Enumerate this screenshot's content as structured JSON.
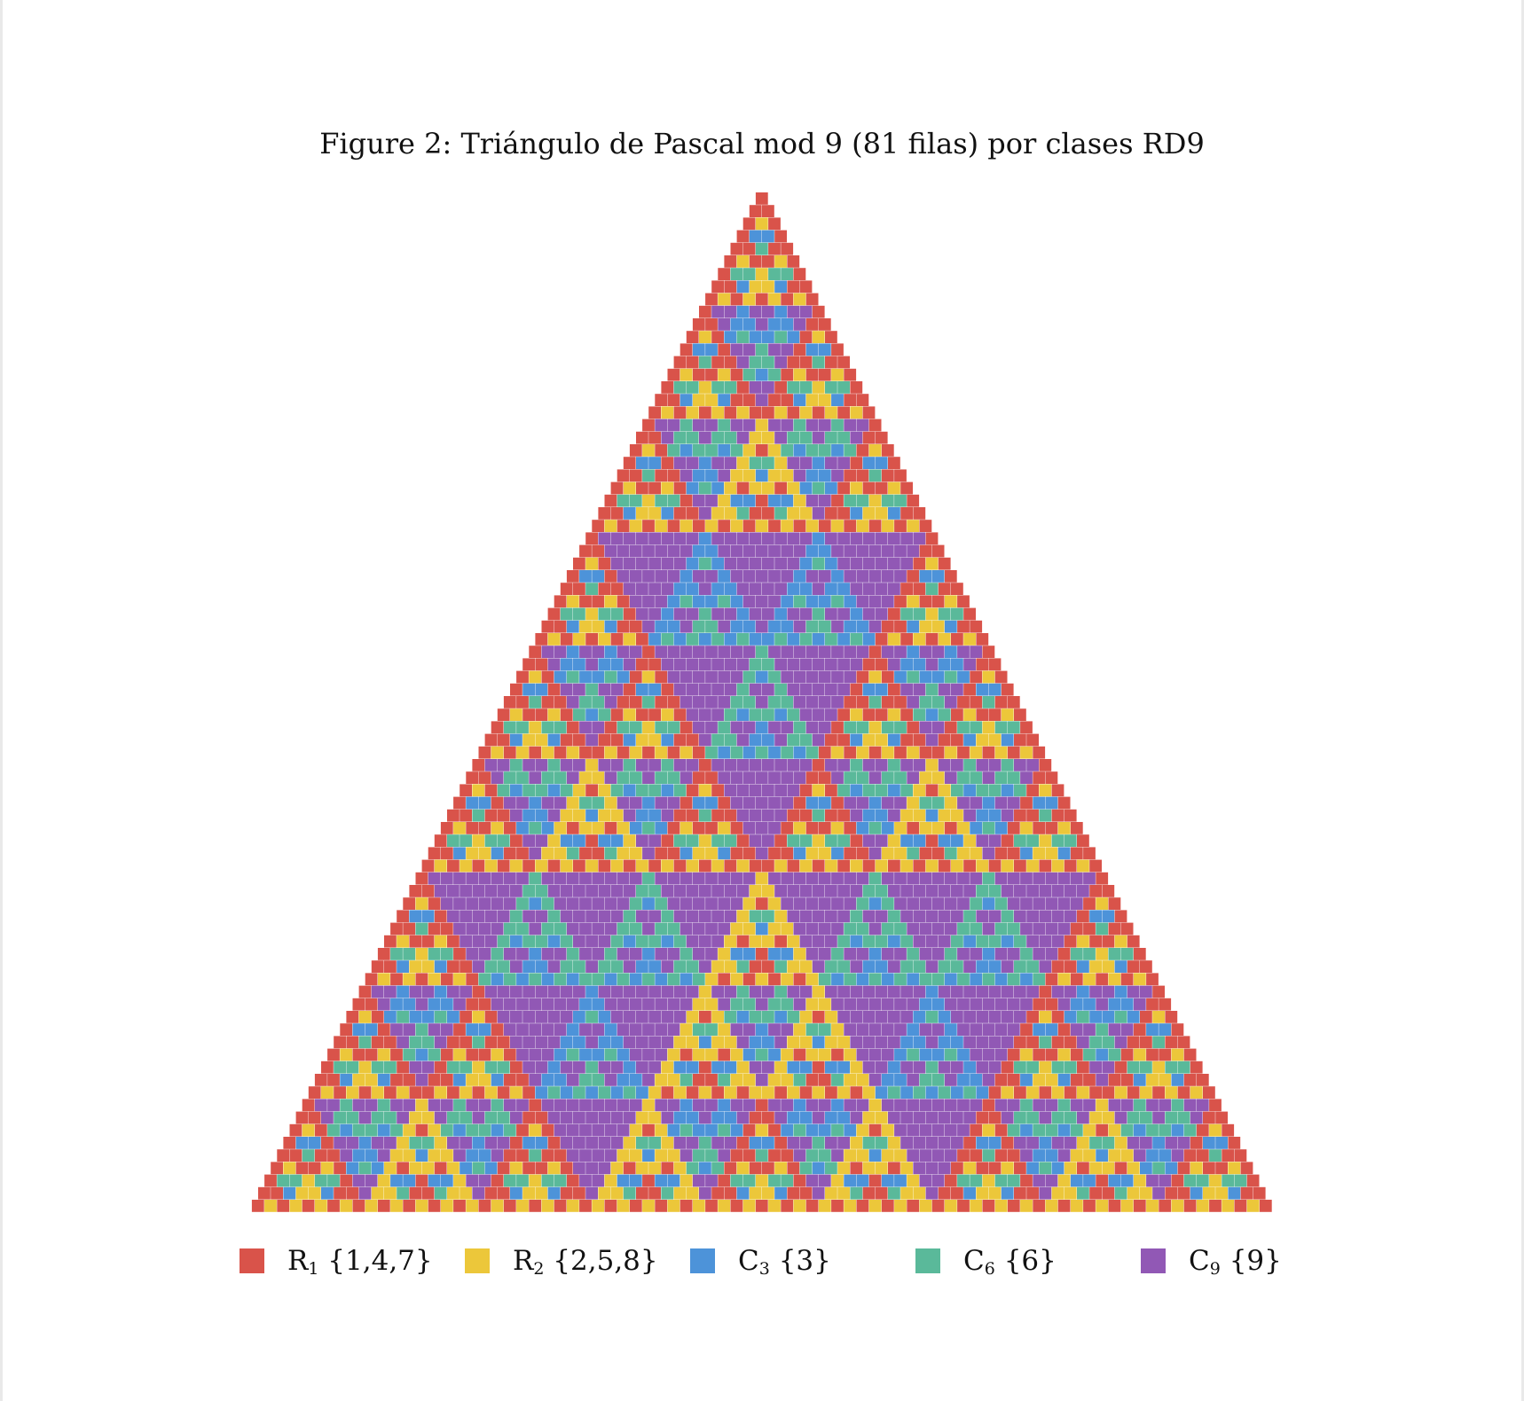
{
  "caption": {
    "prefix": "Figure 2:",
    "text": "Triángulo de Pascal mod 9 (81 filas) por clases RD9"
  },
  "triangle": {
    "modulus": 9,
    "rows": 81,
    "classes": [
      {
        "letter": "R",
        "index": "1",
        "set": "{1,4,7}",
        "residues": [
          1,
          4,
          7
        ],
        "color": "#d9534a"
      },
      {
        "letter": "R",
        "index": "2",
        "set": "{2,5,8}",
        "residues": [
          2,
          5,
          8
        ],
        "color": "#ecc73a"
      },
      {
        "letter": "C",
        "index": "3",
        "set": "{3}",
        "residues": [
          3
        ],
        "color": "#4d93d9"
      },
      {
        "letter": "C",
        "index": "6",
        "set": "{6}",
        "residues": [
          6
        ],
        "color": "#5ab99a"
      },
      {
        "letter": "C",
        "index": "9",
        "set": "{9}",
        "residues": [
          0
        ],
        "color": "#9158b5"
      }
    ]
  }
}
